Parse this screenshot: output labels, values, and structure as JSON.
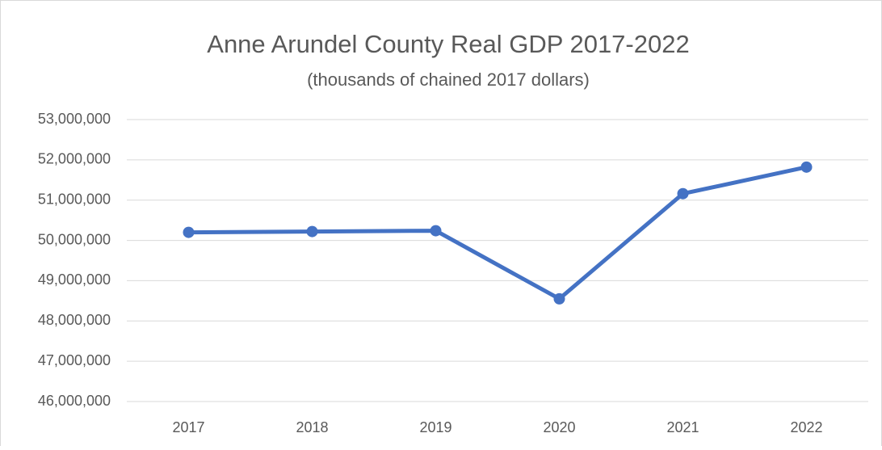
{
  "chart_data": {
    "type": "line",
    "title": "Anne Arundel County Real GDP 2017-2022",
    "subtitle": "(thousands of chained 2017 dollars)",
    "categories": [
      "2017",
      "2018",
      "2019",
      "2020",
      "2021",
      "2022"
    ],
    "series": [
      {
        "name": "Real GDP",
        "color": "#4472c4",
        "values": [
          50200000,
          50220000,
          50240000,
          48550000,
          51160000,
          51820000
        ]
      }
    ],
    "ylim": [
      46000000,
      53000000
    ],
    "yticks": [
      {
        "value": 46000000,
        "label": "46,000,000"
      },
      {
        "value": 47000000,
        "label": "47,000,000"
      },
      {
        "value": 48000000,
        "label": "48,000,000"
      },
      {
        "value": 49000000,
        "label": "49,000,000"
      },
      {
        "value": 50000000,
        "label": "50,000,000"
      },
      {
        "value": 51000000,
        "label": "51,000,000"
      },
      {
        "value": 52000000,
        "label": "52,000,000"
      },
      {
        "value": 53000000,
        "label": "53,000,000"
      }
    ],
    "grid": true
  }
}
